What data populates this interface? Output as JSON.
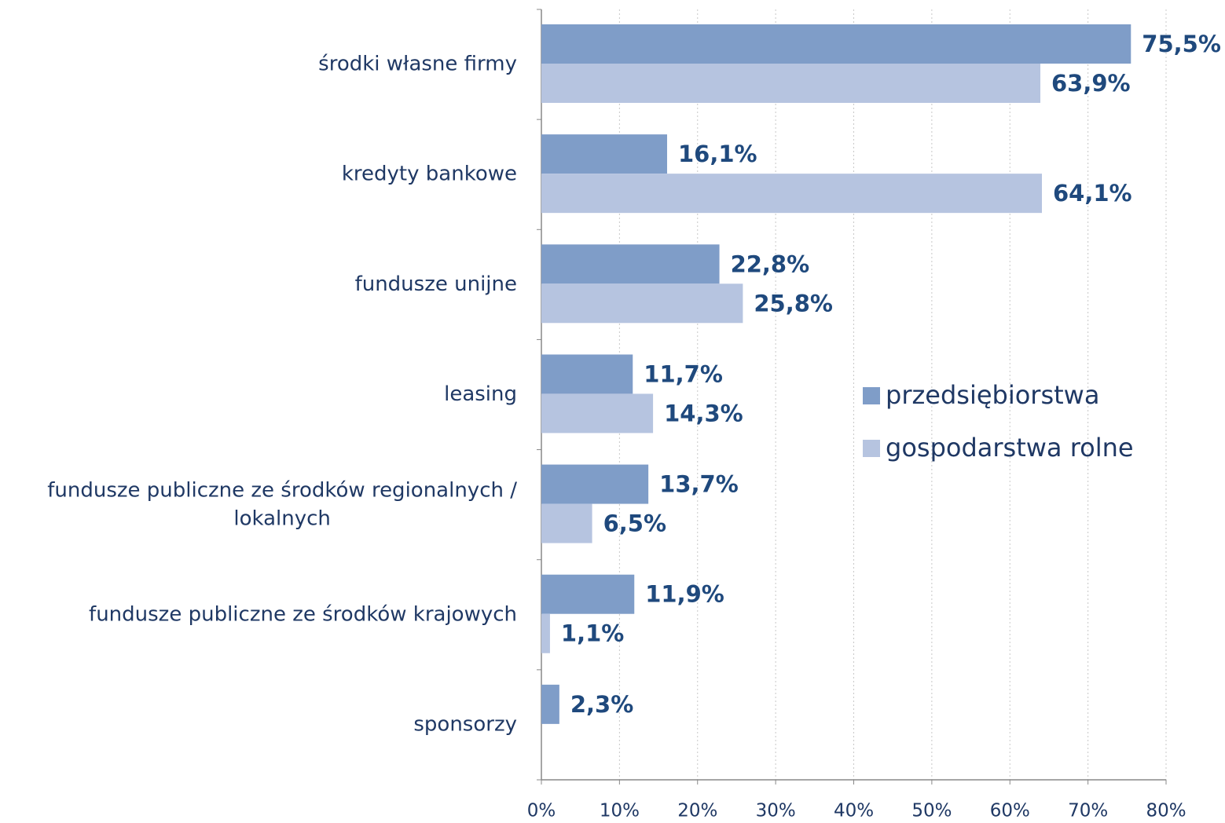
{
  "chart_data": {
    "type": "bar",
    "orientation": "horizontal",
    "categories": [
      "środki  własne firmy",
      "kredyty bankowe",
      "fundusze unijne",
      "leasing",
      "fundusze publiczne ze środków regionalnych / lokalnych",
      "fundusze publiczne ze środków krajowych",
      "sponsorzy"
    ],
    "series": [
      {
        "name": "przedsiębiorstwa",
        "color": "#7f9dc8",
        "values": [
          75.5,
          16.1,
          22.8,
          11.7,
          13.7,
          11.9,
          2.3
        ],
        "value_labels": [
          "75,5%",
          "16,1%",
          "22,8%",
          "11,7%",
          "13,7%",
          "11,9%",
          "2,3%"
        ]
      },
      {
        "name": "gospodarstwa rolne",
        "color": "#b6c4e0",
        "values": [
          63.9,
          64.1,
          25.8,
          14.3,
          6.5,
          1.1,
          null
        ],
        "value_labels": [
          "63,9%",
          "64,1%",
          "25,8%",
          "14,3%",
          "6,5%",
          "1,1%",
          null
        ]
      }
    ],
    "xlim": [
      0,
      80
    ],
    "xticks": [
      {
        "value": 0,
        "label": "0%"
      },
      {
        "value": 10,
        "label": "10%"
      },
      {
        "value": 20,
        "label": "20%"
      },
      {
        "value": 30,
        "label": "30%"
      },
      {
        "value": 40,
        "label": "40%"
      },
      {
        "value": 50,
        "label": "50%"
      },
      {
        "value": 60,
        "label": "60%"
      },
      {
        "value": 70,
        "label": "70%"
      },
      {
        "value": 80,
        "label": "80%"
      }
    ],
    "grid": true,
    "legend": "right"
  }
}
